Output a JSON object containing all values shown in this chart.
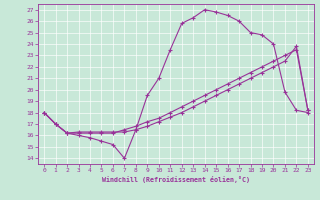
{
  "title": "",
  "xlabel": "Windchill (Refroidissement éolien,°C)",
  "ylabel": "",
  "xlim": [
    -0.5,
    23.5
  ],
  "ylim": [
    13.5,
    27.5
  ],
  "xticks": [
    0,
    1,
    2,
    3,
    4,
    5,
    6,
    7,
    8,
    9,
    10,
    11,
    12,
    13,
    14,
    15,
    16,
    17,
    18,
    19,
    20,
    21,
    22,
    23
  ],
  "yticks": [
    14,
    15,
    16,
    17,
    18,
    19,
    20,
    21,
    22,
    23,
    24,
    25,
    26,
    27
  ],
  "bg_color": "#c8e8d8",
  "line_color": "#993399",
  "line1_x": [
    0,
    1,
    2,
    3,
    4,
    5,
    6,
    7,
    8,
    9,
    10,
    11,
    12,
    13,
    14,
    15,
    16,
    17,
    18,
    19,
    20,
    21,
    22,
    23
  ],
  "line1_y": [
    18,
    17,
    16.2,
    16,
    15.8,
    15.5,
    15.2,
    14,
    16.5,
    19.5,
    21,
    23.5,
    25.8,
    26.3,
    27,
    26.8,
    26.5,
    26,
    25,
    24.8,
    24,
    19.8,
    18.2,
    18
  ],
  "line2_x": [
    0,
    1,
    2,
    3,
    4,
    5,
    6,
    7,
    8,
    9,
    10,
    11,
    12,
    13,
    14,
    15,
    16,
    17,
    18,
    19,
    20,
    21,
    22,
    23
  ],
  "line2_y": [
    18,
    17,
    16.2,
    16.3,
    16.3,
    16.3,
    16.3,
    16.3,
    16.5,
    16.8,
    17.2,
    17.6,
    18.0,
    18.5,
    19.0,
    19.5,
    20.0,
    20.5,
    21.0,
    21.5,
    22.0,
    22.5,
    23.8,
    18.2
  ],
  "line3_x": [
    0,
    1,
    2,
    3,
    4,
    5,
    6,
    7,
    8,
    9,
    10,
    11,
    12,
    13,
    14,
    15,
    16,
    17,
    18,
    19,
    20,
    21,
    22,
    23
  ],
  "line3_y": [
    18,
    17,
    16.2,
    16.2,
    16.2,
    16.2,
    16.2,
    16.5,
    16.8,
    17.2,
    17.5,
    18.0,
    18.5,
    19.0,
    19.5,
    20.0,
    20.5,
    21.0,
    21.5,
    22.0,
    22.5,
    23.0,
    23.5,
    18.2
  ]
}
